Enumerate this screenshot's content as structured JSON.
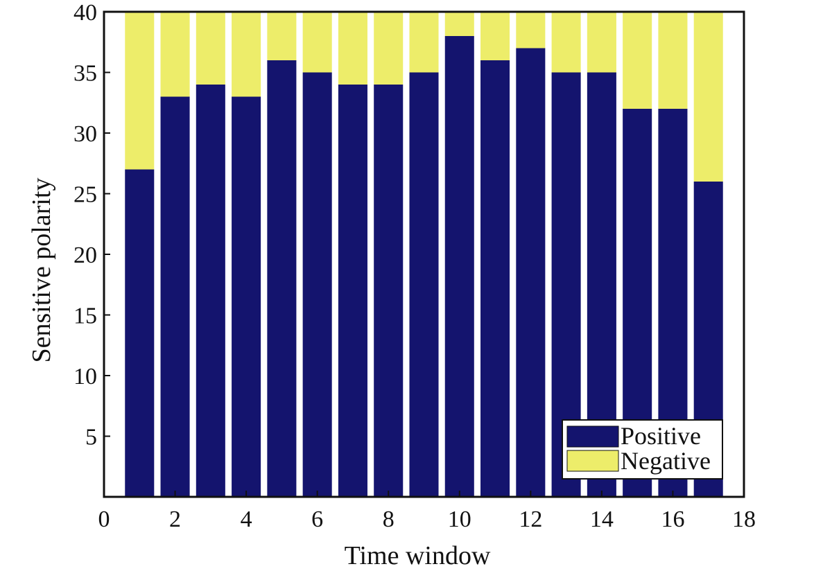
{
  "chart_data": {
    "type": "bar",
    "stacked": true,
    "title": "",
    "xlabel": "Time window",
    "ylabel": "Sensitive polarity",
    "xlim": [
      0,
      18
    ],
    "ylim": [
      0,
      40
    ],
    "x_ticks": [
      0,
      2,
      4,
      6,
      8,
      10,
      12,
      14,
      16,
      18
    ],
    "y_ticks": [
      5,
      10,
      15,
      20,
      25,
      30,
      35,
      40
    ],
    "grid": false,
    "legend_position": "bottom-right",
    "x": [
      1,
      2,
      3,
      4,
      5,
      6,
      7,
      8,
      9,
      10,
      11,
      12,
      13,
      14,
      15,
      16,
      17
    ],
    "series": [
      {
        "name": "Positive",
        "color": "#14146e",
        "values": [
          27,
          33,
          34,
          33,
          36,
          35,
          34,
          34,
          35,
          38,
          36,
          37,
          35,
          35,
          32,
          32,
          26
        ]
      },
      {
        "name": "Negative",
        "color": "#eded6a",
        "values": [
          13,
          7,
          6,
          7,
          4,
          5,
          6,
          6,
          5,
          2,
          4,
          3,
          5,
          5,
          8,
          8,
          14
        ]
      }
    ]
  }
}
